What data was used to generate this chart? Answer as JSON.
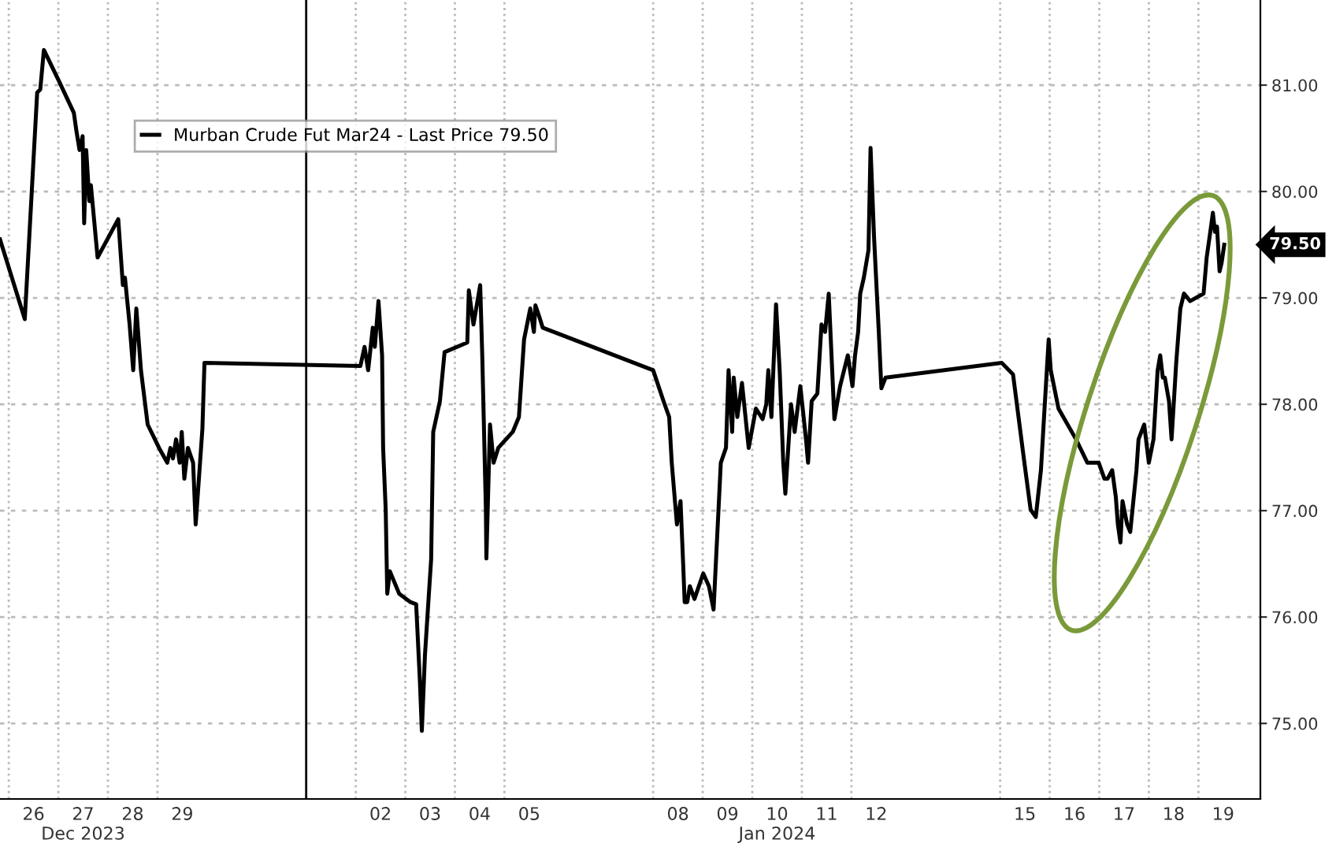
{
  "chart_data": {
    "type": "line",
    "x": [
      "2023-12-25T19:45",
      "2023-12-26T07:45",
      "2023-12-26T13:45",
      "2023-12-26T15:15",
      "2023-12-26T17:00",
      "2023-12-27T00:15",
      "2023-12-27T07:30",
      "2023-12-27T08:45",
      "2023-12-27T10:15",
      "2023-12-27T11:45",
      "2023-12-27T12:30",
      "2023-12-27T13:30",
      "2023-12-27T15:00",
      "2023-12-27T15:45",
      "2023-12-27T19:00",
      "2023-12-28T05:00",
      "2023-12-28T07:15",
      "2023-12-28T08:15",
      "2023-12-28T10:30",
      "2023-12-28T12:15",
      "2023-12-28T13:45",
      "2023-12-28T16:00",
      "2023-12-28T19:15",
      "2023-12-29T00:45",
      "2023-12-29T04:45",
      "2023-12-29T06:15",
      "2023-12-29T07:30",
      "2023-12-29T09:00",
      "2023-12-29T10:45",
      "2023-12-29T11:45",
      "2023-12-29T13:00",
      "2023-12-29T14:45",
      "2023-12-29T17:15",
      "2023-12-29T18:30",
      "2023-12-29T21:45",
      "2023-12-29T22:45",
      "2024-01-02T02:15",
      "2024-01-02T04:15",
      "2024-01-02T06:00",
      "2024-01-02T08:15",
      "2024-01-02T09:15",
      "2024-01-02T11:00",
      "2024-01-02T12:45",
      "2024-01-02T13:15",
      "2024-01-02T14:30",
      "2024-01-02T15:15",
      "2024-01-02T16:30",
      "2024-01-02T21:00",
      "2024-01-03T02:30",
      "2024-01-03T05:15",
      "2024-01-03T07:00",
      "2024-01-03T08:00",
      "2024-01-03T09:30",
      "2024-01-03T11:15",
      "2024-01-03T12:30",
      "2024-01-03T13:30",
      "2024-01-03T16:45",
      "2024-01-03T19:00",
      "2024-01-04T06:00",
      "2024-01-04T06:45",
      "2024-01-04T09:00",
      "2024-01-04T12:15",
      "2024-01-04T13:15",
      "2024-01-04T15:00",
      "2024-01-04T15:15",
      "2024-01-04T17:00",
      "2024-01-04T18:45",
      "2024-01-04T21:00",
      "2024-01-05T04:00",
      "2024-01-05T07:00",
      "2024-01-05T09:30",
      "2024-01-05T12:30",
      "2024-01-05T14:15",
      "2024-01-05T15:00",
      "2024-01-05T16:45",
      "2024-01-05T18:30",
      "2024-01-08T00:00",
      "2024-01-08T05:00",
      "2024-01-08T07:45",
      "2024-01-08T09:00",
      "2024-01-08T11:30",
      "2024-01-08T13:15",
      "2024-01-08T14:30",
      "2024-01-08T15:15",
      "2024-01-08T16:30",
      "2024-01-08T17:45",
      "2024-01-08T20:00",
      "2024-01-09T00:15",
      "2024-01-09T03:00",
      "2024-01-09T05:15",
      "2024-01-09T08:45",
      "2024-01-09T11:15",
      "2024-01-09T12:30",
      "2024-01-09T14:15",
      "2024-01-09T15:00",
      "2024-01-09T16:45",
      "2024-01-09T19:00",
      "2024-01-09T22:15",
      "2024-01-10T01:45",
      "2024-01-10T05:00",
      "2024-01-10T06:45",
      "2024-01-10T07:45",
      "2024-01-10T09:15",
      "2024-01-10T11:30",
      "2024-01-10T13:15",
      "2024-01-10T15:00",
      "2024-01-10T16:00",
      "2024-01-10T18:45",
      "2024-01-10T20:30",
      "2024-01-10T23:15",
      "2024-01-11T02:00",
      "2024-01-11T03:00",
      "2024-01-11T04:45",
      "2024-01-11T07:30",
      "2024-01-11T09:30",
      "2024-01-11T11:15",
      "2024-01-11T13:00",
      "2024-01-11T15:45",
      "2024-01-11T18:30",
      "2024-01-11T22:15",
      "2024-01-12T00:30",
      "2024-01-12T01:45",
      "2024-01-12T03:15",
      "2024-01-12T04:15",
      "2024-01-12T06:00",
      "2024-01-12T08:15",
      "2024-01-12T09:15",
      "2024-01-12T11:00",
      "2024-01-12T13:15",
      "2024-01-12T14:30",
      "2024-01-12T16:30",
      "2024-01-15T00:45",
      "2024-01-15T06:15",
      "2024-01-15T11:45",
      "2024-01-15T14:45",
      "2024-01-15T17:15",
      "2024-01-15T19:45",
      "2024-01-15T21:15",
      "2024-01-15T23:30",
      "2024-01-16T00:30",
      "2024-01-16T04:15",
      "2024-01-16T12:45",
      "2024-01-16T18:15",
      "2024-01-16T20:30",
      "2024-01-16T23:45",
      "2024-01-17T02:30",
      "2024-01-17T04:00",
      "2024-01-17T06:15",
      "2024-01-17T08:00",
      "2024-01-17T09:00",
      "2024-01-17T10:15",
      "2024-01-17T11:15",
      "2024-01-17T13:30",
      "2024-01-17T15:00",
      "2024-01-17T18:00",
      "2024-01-17T19:00",
      "2024-01-17T21:45",
      "2024-01-18T00:00",
      "2024-01-18T02:15",
      "2024-01-18T04:15",
      "2024-01-18T05:30",
      "2024-01-18T06:45",
      "2024-01-18T07:45",
      "2024-01-18T09:45",
      "2024-01-18T11:00",
      "2024-01-18T13:15",
      "2024-01-18T15:15",
      "2024-01-18T17:00",
      "2024-01-18T20:00",
      "2024-01-19T02:30",
      "2024-01-19T04:00",
      "2024-01-19T05:45",
      "2024-01-19T07:00",
      "2024-01-19T08:00",
      "2024-01-19T09:00",
      "2024-01-19T10:15",
      "2024-01-19T11:15",
      "2024-01-19T12:30"
    ],
    "series": [
      {
        "name": "Murban Crude Fut Mar24 - Last Price 79.50",
        "color": "#000000",
        "values": [
          79.55,
          78.8,
          80.93,
          80.96,
          81.33,
          81.04,
          80.74,
          80.57,
          80.39,
          80.52,
          79.7,
          80.39,
          79.91,
          80.06,
          79.38,
          79.74,
          79.12,
          79.19,
          78.75,
          78.32,
          78.9,
          78.32,
          77.81,
          77.59,
          77.45,
          77.59,
          77.49,
          77.67,
          77.45,
          77.74,
          77.3,
          77.59,
          77.45,
          76.87,
          77.77,
          78.39,
          78.36,
          78.54,
          78.32,
          78.72,
          78.54,
          78.97,
          78.46,
          77.59,
          77.01,
          76.22,
          76.43,
          76.22,
          76.14,
          76.12,
          75.42,
          74.93,
          75.64,
          76.17,
          76.54,
          77.74,
          78.03,
          78.49,
          78.58,
          79.07,
          78.75,
          79.12,
          78.46,
          77.01,
          76.55,
          77.81,
          77.45,
          77.59,
          77.74,
          77.88,
          78.61,
          78.9,
          78.68,
          78.93,
          78.83,
          78.72,
          78.32,
          78.03,
          77.88,
          77.45,
          76.87,
          77.09,
          76.51,
          76.14,
          76.14,
          76.29,
          76.17,
          76.41,
          76.29,
          76.07,
          77.45,
          77.59,
          78.32,
          77.74,
          78.25,
          77.88,
          78.2,
          77.59,
          77.96,
          77.86,
          78.0,
          78.32,
          77.88,
          78.94,
          78.32,
          77.45,
          77.16,
          78.0,
          77.74,
          78.17,
          77.67,
          77.45,
          78.03,
          78.1,
          78.75,
          78.68,
          79.04,
          77.86,
          78.17,
          78.46,
          78.17,
          78.46,
          78.68,
          79.04,
          79.19,
          79.45,
          80.41,
          79.55,
          78.68,
          78.15,
          78.25,
          78.39,
          78.28,
          77.45,
          77.01,
          76.94,
          77.38,
          77.88,
          78.61,
          78.32,
          77.96,
          77.67,
          77.45,
          77.45,
          77.45,
          77.3,
          77.3,
          77.38,
          77.13,
          76.87,
          76.7,
          77.09,
          76.87,
          76.8,
          77.38,
          77.67,
          77.81,
          77.45,
          77.67,
          78.32,
          78.46,
          78.25,
          78.25,
          78.03,
          77.67,
          78.39,
          78.9,
          79.04,
          78.97,
          79.04,
          79.38,
          79.62,
          79.8,
          79.62,
          79.67,
          79.25,
          79.33,
          79.5
        ]
      }
    ],
    "xlim": [
      "2023-12-25T19:45",
      "2024-01-20T06:00"
    ],
    "xticks": [
      {
        "value": "2023-12-26",
        "label": null
      },
      {
        "value": "2023-12-27",
        "label": null
      },
      {
        "value": "2023-12-28",
        "label": null
      },
      {
        "value": "2023-12-29",
        "label": null
      },
      {
        "value": "2024-01-02",
        "label": null
      },
      {
        "value": "2024-01-03",
        "label": null
      },
      {
        "value": "2024-01-04",
        "label": null
      },
      {
        "value": "2024-01-05",
        "label": null
      },
      {
        "value": "2024-01-08",
        "label": null
      },
      {
        "value": "2024-01-09",
        "label": null
      },
      {
        "value": "2024-01-10",
        "label": null
      },
      {
        "value": "2024-01-11",
        "label": null
      },
      {
        "value": "2024-01-12",
        "label": null
      },
      {
        "value": "2024-01-15",
        "label": null
      },
      {
        "value": "2024-01-16",
        "label": null
      },
      {
        "value": "2024-01-17",
        "label": null
      },
      {
        "value": "2024-01-18",
        "label": null
      },
      {
        "value": "2024-01-19",
        "label": null
      },
      {
        "value": "2023-12-26T12:00",
        "label": "26"
      },
      {
        "value": "2023-12-27T12:00",
        "label": "27\nDec 2023"
      },
      {
        "value": "2023-12-28T12:00",
        "label": "28"
      },
      {
        "value": "2023-12-29T12:00",
        "label": "29"
      },
      {
        "value": "2024-01-02T12:00",
        "label": "02"
      },
      {
        "value": "2024-01-03T12:00",
        "label": "03"
      },
      {
        "value": "2024-01-04T12:00",
        "label": "04"
      },
      {
        "value": "2024-01-05T12:00",
        "label": "05"
      },
      {
        "value": "2024-01-08T12:00",
        "label": "08"
      },
      {
        "value": "2024-01-09T12:00",
        "label": "09"
      },
      {
        "value": "2024-01-10T12:00",
        "label": "10\nJan 2024"
      },
      {
        "value": "2024-01-11T12:00",
        "label": "11"
      },
      {
        "value": "2024-01-12T12:00",
        "label": "12"
      },
      {
        "value": "2024-01-15T12:00",
        "label": "15"
      },
      {
        "value": "2024-01-16T12:00",
        "label": "16"
      },
      {
        "value": "2024-01-17T12:00",
        "label": "17"
      },
      {
        "value": "2024-01-18T12:00",
        "label": "18"
      },
      {
        "value": "2024-01-19T12:00",
        "label": "19"
      }
    ],
    "ylim": [
      74.29,
      81.8
    ],
    "yticks": [
      {
        "value": 75,
        "label": "75.00"
      },
      {
        "value": 76,
        "label": "76.00"
      },
      {
        "value": 77,
        "label": "77.00"
      },
      {
        "value": 78,
        "label": "78.00"
      },
      {
        "value": 79,
        "label": "79.00"
      },
      {
        "value": 80,
        "label": "80.00"
      },
      {
        "value": 81,
        "label": "81.00"
      }
    ],
    "ref_lines": [
      {
        "axis": "x",
        "value": "2024-01-01",
        "color": "#000000",
        "line_style": "solid"
      }
    ],
    "annotations": [
      "79.50"
    ],
    "grid": true,
    "legend": "top left",
    "marker": "none",
    "line_style": "solid"
  }
}
